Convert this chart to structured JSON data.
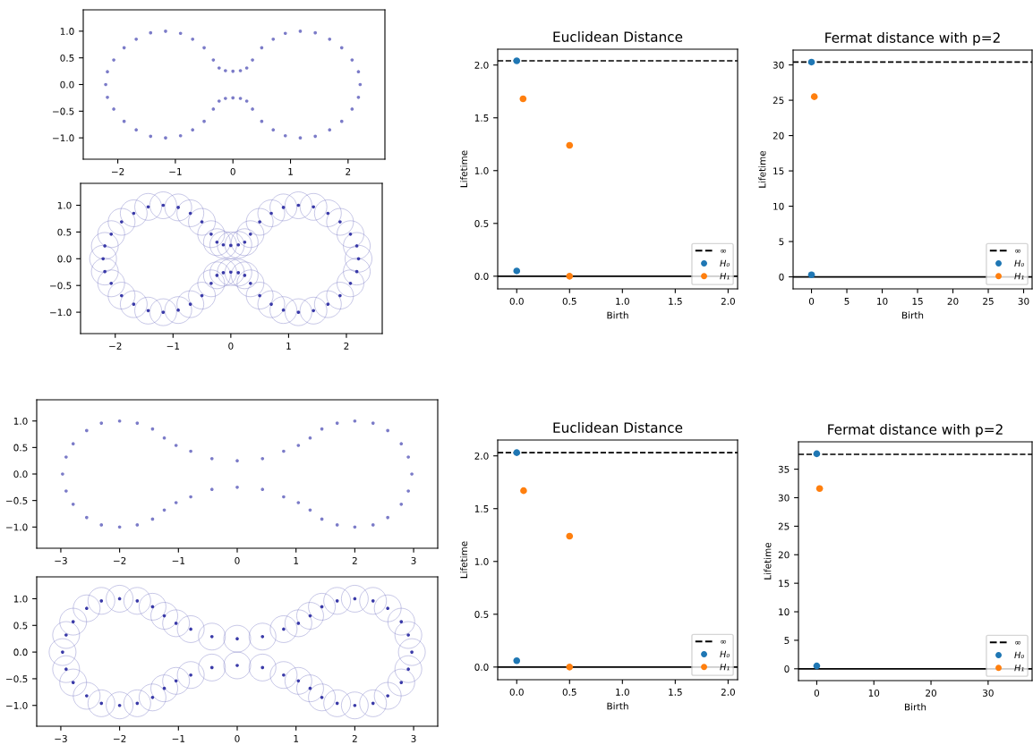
{
  "chart_data": [
    {
      "type": "scatter",
      "marker": "circle",
      "grid": false,
      "xlim": [
        -2.6,
        2.64
      ],
      "ylim": [
        -1.4,
        1.4
      ],
      "xticks": [
        {
          "value": -2,
          "label": "−2"
        },
        {
          "value": -1,
          "label": "−1"
        },
        0,
        1,
        2
      ],
      "yticks": [
        {
          "value": -1,
          "label": "−1.0"
        },
        {
          "value": -0.5,
          "label": "−0.5"
        },
        {
          "value": 0,
          "label": "0.0"
        },
        {
          "value": 0.5,
          "label": "0.5"
        },
        {
          "value": 1,
          "label": "1.0"
        }
      ],
      "series": [
        {
          "color": "#7b7bc8",
          "x": [
            2.21,
            2.18,
            2.07,
            1.89,
            1.68,
            1.43,
            1.17,
            0.91,
            0.7,
            0.5,
            0.34,
            0.24,
            0.13,
            0,
            -0.13,
            -0.24,
            -0.34,
            -0.5,
            -0.7,
            -0.91,
            -1.17,
            -1.43,
            -1.68,
            -1.89,
            -2.07,
            -2.18,
            -2.21,
            -2.18,
            -2.07,
            -1.89,
            -1.68,
            -1.43,
            -1.17,
            -0.91,
            -0.7,
            -0.5,
            -0.34,
            -0.24,
            -0.13,
            0,
            0.13,
            0.24,
            0.34,
            0.5,
            0.7,
            0.91,
            1.17,
            1.43,
            1.68,
            1.89,
            2.07,
            2.18
          ],
          "values": [
            0,
            0.24,
            0.46,
            0.69,
            0.85,
            0.97,
            1.0,
            0.96,
            0.85,
            0.69,
            0.46,
            0.31,
            0.26,
            0.25,
            0.26,
            0.31,
            0.46,
            0.69,
            0.85,
            0.96,
            1.0,
            0.97,
            0.85,
            0.69,
            0.46,
            0.24,
            0,
            -0.24,
            -0.46,
            -0.69,
            -0.85,
            -0.97,
            -1.0,
            -0.96,
            -0.85,
            -0.69,
            -0.46,
            -0.31,
            -0.26,
            -0.25,
            -0.26,
            -0.31,
            -0.46,
            -0.69,
            -0.85,
            -0.96,
            -1.0,
            -0.97,
            -0.85,
            -0.69,
            -0.46,
            -0.24
          ]
        }
      ]
    },
    {
      "type": "scatter",
      "marker": "circle",
      "grid": false,
      "xlim": [
        -2.6,
        2.62
      ],
      "ylim": [
        -1.4,
        1.41
      ],
      "xticks": [
        {
          "value": -2,
          "label": "−2"
        },
        {
          "value": -1,
          "label": "−1"
        },
        0,
        1,
        2
      ],
      "yticks": [
        {
          "value": -1,
          "label": "−1.0"
        },
        {
          "value": -0.5,
          "label": "−0.5"
        },
        {
          "value": 0,
          "label": "0.0"
        },
        {
          "value": 0.5,
          "label": "0.5"
        },
        {
          "value": 1,
          "label": "1.0"
        }
      ],
      "series": [
        {
          "type": "bubble",
          "color": "#7a7ac4",
          "x": [
            2.21,
            2.18,
            2.07,
            1.89,
            1.68,
            1.43,
            1.17,
            0.91,
            0.7,
            0.5,
            0.34,
            0.24,
            0.13,
            0,
            -0.13,
            -0.24,
            -0.34,
            -0.5,
            -0.7,
            -0.91,
            -1.17,
            -1.43,
            -1.68,
            -1.89,
            -2.07,
            -2.18,
            -2.21,
            -2.18,
            -2.07,
            -1.89,
            -1.68,
            -1.43,
            -1.17,
            -0.91,
            -0.7,
            -0.5,
            -0.34,
            -0.24,
            -0.13,
            0,
            0.13,
            0.24,
            0.34,
            0.5,
            0.7,
            0.91,
            1.17,
            1.43,
            1.68,
            1.89,
            2.07,
            2.18
          ],
          "values": [
            0,
            0.24,
            0.46,
            0.69,
            0.85,
            0.97,
            1.0,
            0.96,
            0.85,
            0.69,
            0.46,
            0.31,
            0.26,
            0.25,
            0.26,
            0.31,
            0.46,
            0.69,
            0.85,
            0.96,
            1.0,
            0.97,
            0.85,
            0.69,
            0.46,
            0.24,
            0,
            -0.24,
            -0.46,
            -0.69,
            -0.85,
            -0.97,
            -1.0,
            -0.96,
            -0.85,
            -0.69,
            -0.46,
            -0.31,
            -0.26,
            -0.25,
            -0.26,
            -0.31,
            -0.46,
            -0.69,
            -0.85,
            -0.96,
            -1.0,
            -0.97,
            -0.85,
            -0.69,
            -0.46,
            -0.24
          ],
          "sizes": [
            1,
            1,
            1,
            1,
            1,
            1,
            1,
            1,
            1,
            1,
            1,
            1,
            1,
            1,
            1,
            1,
            1,
            1,
            1,
            1,
            1,
            1,
            1,
            1,
            1,
            1,
            1,
            1,
            1,
            1,
            1,
            1,
            1,
            1,
            1,
            1,
            1,
            1,
            1,
            1,
            1,
            1,
            1,
            1,
            1,
            1,
            1,
            1,
            1,
            1,
            1,
            1
          ]
        },
        {
          "color": "#3a3aa8",
          "x": [
            2.21,
            2.18,
            2.07,
            1.89,
            1.68,
            1.43,
            1.17,
            0.91,
            0.7,
            0.5,
            0.34,
            0.24,
            0.13,
            0,
            -0.13,
            -0.24,
            -0.34,
            -0.5,
            -0.7,
            -0.91,
            -1.17,
            -1.43,
            -1.68,
            -1.89,
            -2.07,
            -2.18,
            -2.21,
            -2.18,
            -2.07,
            -1.89,
            -1.68,
            -1.43,
            -1.17,
            -0.91,
            -0.7,
            -0.5,
            -0.34,
            -0.24,
            -0.13,
            0,
            0.13,
            0.24,
            0.34,
            0.5,
            0.7,
            0.91,
            1.17,
            1.43,
            1.68,
            1.89,
            2.07,
            2.18
          ],
          "values": [
            0,
            0.24,
            0.46,
            0.69,
            0.85,
            0.97,
            1.0,
            0.96,
            0.85,
            0.69,
            0.46,
            0.31,
            0.26,
            0.25,
            0.26,
            0.31,
            0.46,
            0.69,
            0.85,
            0.96,
            1.0,
            0.97,
            0.85,
            0.69,
            0.46,
            0.24,
            0,
            -0.24,
            -0.46,
            -0.69,
            -0.85,
            -0.97,
            -1.0,
            -0.96,
            -0.85,
            -0.69,
            -0.46,
            -0.31,
            -0.26,
            -0.25,
            -0.26,
            -0.31,
            -0.46,
            -0.69,
            -0.85,
            -0.96,
            -1.0,
            -0.97,
            -0.85,
            -0.69,
            -0.46,
            -0.24
          ]
        }
      ]
    },
    {
      "type": "scatter",
      "marker": "circle",
      "grid": false,
      "legend": "bottom right",
      "title": "Euclidean Distance",
      "xlabel": "Birth",
      "ylabel": "Lifetime",
      "xlim": [
        -0.18,
        2.09
      ],
      "ylim": [
        -0.12,
        2.15
      ],
      "xticks": [
        {
          "value": 0,
          "label": "0.0"
        },
        0.5,
        {
          "value": 1,
          "label": "1.0"
        },
        1.5,
        {
          "value": 2,
          "label": "2.0"
        }
      ],
      "yticks": [
        {
          "value": 0,
          "label": "0.0"
        },
        0.5,
        {
          "value": 1,
          "label": "1.0"
        },
        1.5,
        {
          "value": 2,
          "label": "2.0"
        }
      ],
      "ref_lines": [
        {
          "axis": "y",
          "value": 2.04,
          "label": "∞",
          "color": "#000000",
          "line_style": "dashed"
        },
        {
          "axis": "y",
          "value": 0,
          "color": "#000000",
          "line_style": "solid"
        }
      ],
      "series": [
        {
          "name": "H₀",
          "color": "#1f77b4",
          "x": [
            0,
            0
          ],
          "values": [
            2.04,
            0.05
          ]
        },
        {
          "name": "H₁",
          "color": "#ff7f0e",
          "x": [
            0.06,
            0.5,
            0.5
          ],
          "values": [
            1.68,
            1.24,
            0
          ]
        }
      ]
    },
    {
      "type": "scatter",
      "marker": "circle",
      "grid": false,
      "legend": "bottom right",
      "title": "Fermat distance with p=2",
      "xlabel": "Birth",
      "ylabel": "Lifetime",
      "xlim": [
        -2.6,
        31.2
      ],
      "ylim": [
        -1.7,
        32.1
      ],
      "xticks": [
        0,
        5,
        10,
        15,
        20,
        25,
        30
      ],
      "yticks": [
        0,
        5,
        10,
        15,
        20,
        25,
        30
      ],
      "ref_lines": [
        {
          "axis": "y",
          "value": 30.4,
          "label": "∞",
          "color": "#000000",
          "line_style": "dashed"
        },
        {
          "axis": "y",
          "value": 0,
          "color": "#000000",
          "line_style": "solid"
        }
      ],
      "series": [
        {
          "name": "H₀",
          "color": "#1f77b4",
          "x": [
            0,
            0
          ],
          "values": [
            30.4,
            0.3
          ]
        },
        {
          "name": "H₁",
          "color": "#ff7f0e",
          "x": [
            0.4
          ],
          "values": [
            25.5
          ]
        }
      ]
    },
    {
      "type": "scatter",
      "marker": "circle",
      "grid": false,
      "xlim": [
        -3.41,
        3.41
      ],
      "ylim": [
        -1.4,
        1.4
      ],
      "xticks": [
        {
          "value": -3,
          "label": "−3"
        },
        {
          "value": -2,
          "label": "−2"
        },
        {
          "value": -1,
          "label": "−1"
        },
        0,
        1,
        2,
        3
      ],
      "yticks": [
        {
          "value": -1,
          "label": "−1.0"
        },
        {
          "value": -0.5,
          "label": "−0.5"
        },
        {
          "value": 0,
          "label": "0.0"
        },
        {
          "value": 0.5,
          "label": "0.5"
        },
        {
          "value": 1,
          "label": "1.0"
        }
      ],
      "series": [
        {
          "color": "#7b7bc8",
          "x": [
            2.97,
            2.91,
            2.79,
            2.56,
            2.31,
            2.0,
            1.7,
            1.44,
            1.24,
            1.04,
            0.79,
            0.43,
            0,
            -0.43,
            -0.79,
            -1.04,
            -1.24,
            -1.44,
            -1.7,
            -2.0,
            -2.31,
            -2.56,
            -2.79,
            -2.91,
            -2.97,
            -2.91,
            -2.79,
            -2.56,
            -2.31,
            -2.0,
            -1.7,
            -1.44,
            -1.24,
            -1.04,
            -0.79,
            -0.43,
            0,
            0.43,
            0.79,
            1.04,
            1.24,
            1.44,
            1.7,
            2.0,
            2.31,
            2.56,
            2.79,
            2.91
          ],
          "values": [
            0,
            0.32,
            0.57,
            0.82,
            0.96,
            1.0,
            0.96,
            0.85,
            0.68,
            0.54,
            0.43,
            0.29,
            0.25,
            0.29,
            0.43,
            0.54,
            0.68,
            0.85,
            0.96,
            1.0,
            0.96,
            0.82,
            0.57,
            0.32,
            0,
            -0.32,
            -0.57,
            -0.82,
            -0.96,
            -1.0,
            -0.96,
            -0.85,
            -0.68,
            -0.54,
            -0.43,
            -0.29,
            -0.25,
            -0.29,
            -0.43,
            -0.54,
            -0.68,
            -0.85,
            -0.96,
            -1.0,
            -0.96,
            -0.82,
            -0.57,
            -0.32
          ]
        }
      ]
    },
    {
      "type": "scatter",
      "marker": "circle",
      "grid": false,
      "xlim": [
        -3.41,
        3.41
      ],
      "ylim": [
        -1.39,
        1.41
      ],
      "xticks": [
        {
          "value": -3,
          "label": "−3"
        },
        {
          "value": -2,
          "label": "−2"
        },
        {
          "value": -1,
          "label": "−1"
        },
        0,
        1,
        2,
        3
      ],
      "yticks": [
        {
          "value": -1,
          "label": "−1.0"
        },
        {
          "value": -0.5,
          "label": "−0.5"
        },
        {
          "value": 0,
          "label": "0.0"
        },
        {
          "value": 0.5,
          "label": "0.5"
        },
        {
          "value": 1,
          "label": "1.0"
        }
      ],
      "series": [
        {
          "type": "bubble",
          "color": "#7a7ac4",
          "x": [
            2.97,
            2.91,
            2.79,
            2.56,
            2.31,
            2.0,
            1.7,
            1.44,
            1.24,
            1.04,
            0.79,
            0.43,
            0,
            -0.43,
            -0.79,
            -1.04,
            -1.24,
            -1.44,
            -1.7,
            -2.0,
            -2.31,
            -2.56,
            -2.79,
            -2.91,
            -2.97,
            -2.91,
            -2.79,
            -2.56,
            -2.31,
            -2.0,
            -1.7,
            -1.44,
            -1.24,
            -1.04,
            -0.79,
            -0.43,
            0,
            0.43,
            0.79,
            1.04,
            1.24,
            1.44,
            1.7,
            2.0,
            2.31,
            2.56,
            2.79,
            2.91
          ],
          "values": [
            0,
            0.32,
            0.57,
            0.82,
            0.96,
            1.0,
            0.96,
            0.85,
            0.68,
            0.54,
            0.43,
            0.29,
            0.25,
            0.29,
            0.43,
            0.54,
            0.68,
            0.85,
            0.96,
            1.0,
            0.96,
            0.82,
            0.57,
            0.32,
            0,
            -0.32,
            -0.57,
            -0.82,
            -0.96,
            -1.0,
            -0.96,
            -0.85,
            -0.68,
            -0.54,
            -0.43,
            -0.29,
            -0.25,
            -0.29,
            -0.43,
            -0.54,
            -0.68,
            -0.85,
            -0.96,
            -1.0,
            -0.96,
            -0.82,
            -0.57,
            -0.32
          ],
          "sizes": [
            1,
            1,
            1,
            1,
            1,
            1,
            1,
            1,
            1,
            1,
            1,
            1,
            1,
            1,
            1,
            1,
            1,
            1,
            1,
            1,
            1,
            1,
            1,
            1,
            1,
            1,
            1,
            1,
            1,
            1,
            1,
            1,
            1,
            1,
            1,
            1,
            1,
            1,
            1,
            1,
            1,
            1,
            1,
            1,
            1,
            1,
            1,
            1
          ]
        },
        {
          "color": "#3a3aa8",
          "x": [
            2.97,
            2.91,
            2.79,
            2.56,
            2.31,
            2.0,
            1.7,
            1.44,
            1.24,
            1.04,
            0.79,
            0.43,
            0,
            -0.43,
            -0.79,
            -1.04,
            -1.24,
            -1.44,
            -1.7,
            -2.0,
            -2.31,
            -2.56,
            -2.79,
            -2.91,
            -2.97,
            -2.91,
            -2.79,
            -2.56,
            -2.31,
            -2.0,
            -1.7,
            -1.44,
            -1.24,
            -1.04,
            -0.79,
            -0.43,
            0,
            0.43,
            0.79,
            1.04,
            1.24,
            1.44,
            1.7,
            2.0,
            2.31,
            2.56,
            2.79,
            2.91
          ],
          "values": [
            0,
            0.32,
            0.57,
            0.82,
            0.96,
            1.0,
            0.96,
            0.85,
            0.68,
            0.54,
            0.43,
            0.29,
            0.25,
            0.29,
            0.43,
            0.54,
            0.68,
            0.85,
            0.96,
            1.0,
            0.96,
            0.82,
            0.57,
            0.32,
            0,
            -0.32,
            -0.57,
            -0.82,
            -0.96,
            -1.0,
            -0.96,
            -0.85,
            -0.68,
            -0.54,
            -0.43,
            -0.29,
            -0.25,
            -0.29,
            -0.43,
            -0.54,
            -0.68,
            -0.85,
            -0.96,
            -1.0,
            -0.96,
            -0.82,
            -0.57,
            -0.32
          ]
        }
      ]
    },
    {
      "type": "scatter",
      "marker": "circle",
      "grid": false,
      "legend": "bottom right",
      "title": "Euclidean Distance",
      "xlabel": "Birth",
      "ylabel": "Lifetime",
      "xlim": [
        -0.18,
        2.09
      ],
      "ylim": [
        -0.12,
        2.15
      ],
      "xticks": [
        {
          "value": 0,
          "label": "0.0"
        },
        0.5,
        {
          "value": 1,
          "label": "1.0"
        },
        1.5,
        {
          "value": 2,
          "label": "2.0"
        }
      ],
      "yticks": [
        {
          "value": 0,
          "label": "0.0"
        },
        0.5,
        {
          "value": 1,
          "label": "1.0"
        },
        1.5,
        {
          "value": 2,
          "label": "2.0"
        }
      ],
      "ref_lines": [
        {
          "axis": "y",
          "value": 2.03,
          "label": "∞",
          "color": "#000000",
          "line_style": "dashed"
        },
        {
          "axis": "y",
          "value": 0,
          "color": "#000000",
          "line_style": "solid"
        }
      ],
      "series": [
        {
          "name": "H₀",
          "color": "#1f77b4",
          "x": [
            0,
            0
          ],
          "values": [
            2.03,
            0.06
          ]
        },
        {
          "name": "H₁",
          "color": "#ff7f0e",
          "x": [
            0.065,
            0.5,
            0.5
          ],
          "values": [
            1.67,
            1.24,
            0
          ]
        }
      ]
    },
    {
      "type": "scatter",
      "marker": "circle",
      "grid": false,
      "legend": "bottom right",
      "title": "Fermat distance with p=2",
      "xlabel": "Birth",
      "ylabel": "Lifetime",
      "xlim": [
        -3.2,
        37.7
      ],
      "ylim": [
        -2.07,
        39.8
      ],
      "xticks": [
        0,
        10,
        20,
        30
      ],
      "yticks": [
        0,
        5,
        10,
        15,
        20,
        25,
        30,
        35
      ],
      "ref_lines": [
        {
          "axis": "y",
          "value": 37.6,
          "label": "∞",
          "color": "#000000",
          "line_style": "dashed"
        },
        {
          "axis": "y",
          "value": 0,
          "color": "#000000",
          "line_style": "solid"
        }
      ],
      "series": [
        {
          "name": "H₀",
          "color": "#1f77b4",
          "x": [
            0,
            0
          ],
          "values": [
            37.7,
            0.5
          ]
        },
        {
          "name": "H₁",
          "color": "#ff7f0e",
          "x": [
            0.5
          ],
          "values": [
            31.6
          ]
        }
      ]
    }
  ]
}
